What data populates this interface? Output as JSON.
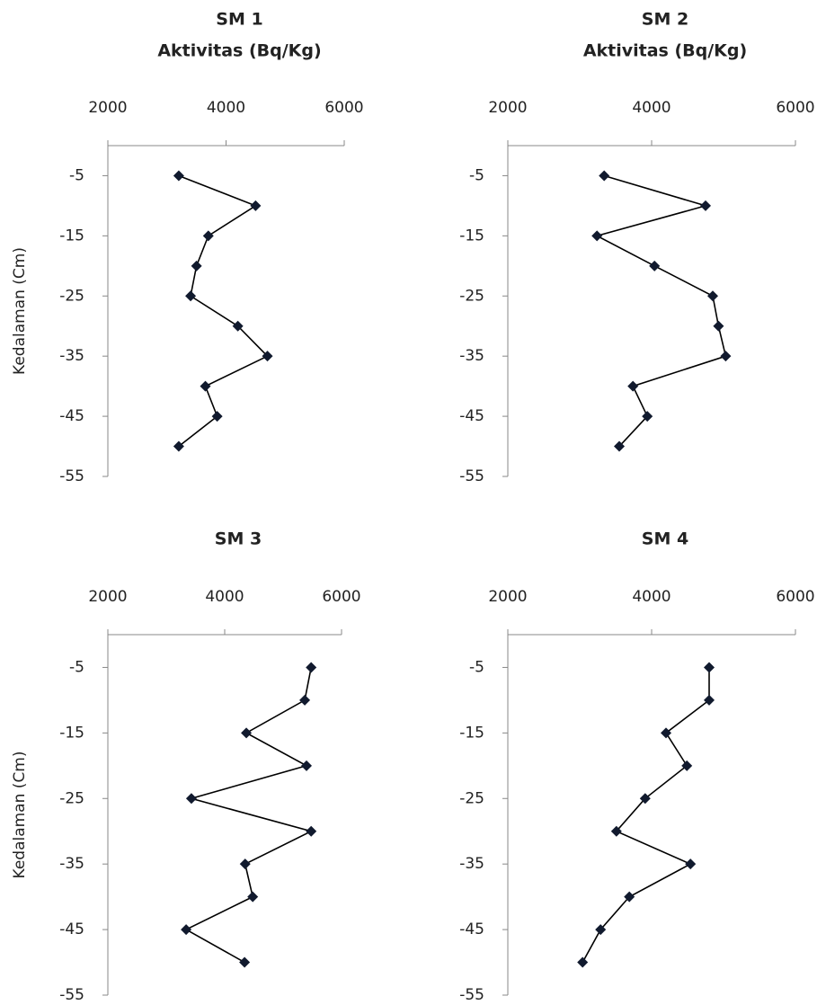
{
  "chart_data": [
    {
      "type": "line",
      "title": "SM 1",
      "xlabel": "Aktivitas (Bq/Kg)",
      "ylabel": "Kedalaman (Cm)",
      "x": [
        3200,
        4500,
        3700,
        3500,
        3400,
        4200,
        4700,
        3650,
        3850,
        3200
      ],
      "y": [
        -5,
        -10,
        -15,
        -20,
        -25,
        -30,
        -35,
        -40,
        -45,
        -50
      ],
      "xlim": [
        2000,
        6000
      ],
      "xticks": [
        2000,
        4000,
        6000
      ],
      "ylim": [
        -55,
        0
      ],
      "yticks": [
        -5,
        -15,
        -25,
        -35,
        -45,
        -55
      ],
      "color": "#111a2e"
    },
    {
      "type": "line",
      "title": "SM 2",
      "xlabel": "Aktivitas (Bq/Kg)",
      "x": [
        3340,
        4750,
        3240,
        4040,
        4850,
        4930,
        5030,
        3740,
        3940,
        3550
      ],
      "y": [
        -5,
        -10,
        -15,
        -20,
        -25,
        -30,
        -35,
        -40,
        -45,
        -50
      ],
      "xlim": [
        2000,
        6000
      ],
      "xticks": [
        2000,
        4000,
        6000
      ],
      "ylim": [
        -55,
        0
      ],
      "yticks": [
        -5,
        -15,
        -25,
        -35,
        -45,
        -55
      ],
      "color": "#111a2e"
    },
    {
      "type": "line",
      "title": "SM 3",
      "ylabel": "Kedalaman (Cm)",
      "x": [
        5480,
        5370,
        4370,
        5400,
        3430,
        5480,
        4350,
        4480,
        3340,
        4340
      ],
      "y": [
        -5,
        -10,
        -15,
        -20,
        -25,
        -30,
        -35,
        -40,
        -45,
        -50
      ],
      "xlim": [
        2000,
        6000
      ],
      "xticks": [
        2000,
        4000,
        6000
      ],
      "ylim": [
        -55,
        0
      ],
      "yticks": [
        -5,
        -15,
        -25,
        -35,
        -45,
        -55
      ],
      "color": "#111a2e"
    },
    {
      "type": "line",
      "title": "SM 4",
      "x": [
        4800,
        4800,
        4200,
        4490,
        3910,
        3510,
        4540,
        3690,
        3290,
        3040
      ],
      "y": [
        -5,
        -10,
        -15,
        -20,
        -25,
        -30,
        -35,
        -40,
        -45,
        -50
      ],
      "xlim": [
        2000,
        6000
      ],
      "xticks": [
        2000,
        4000,
        6000
      ],
      "ylim": [
        -55,
        0
      ],
      "yticks": [
        -5,
        -15,
        -25,
        -35,
        -45,
        -55
      ],
      "color": "#111a2e"
    }
  ]
}
